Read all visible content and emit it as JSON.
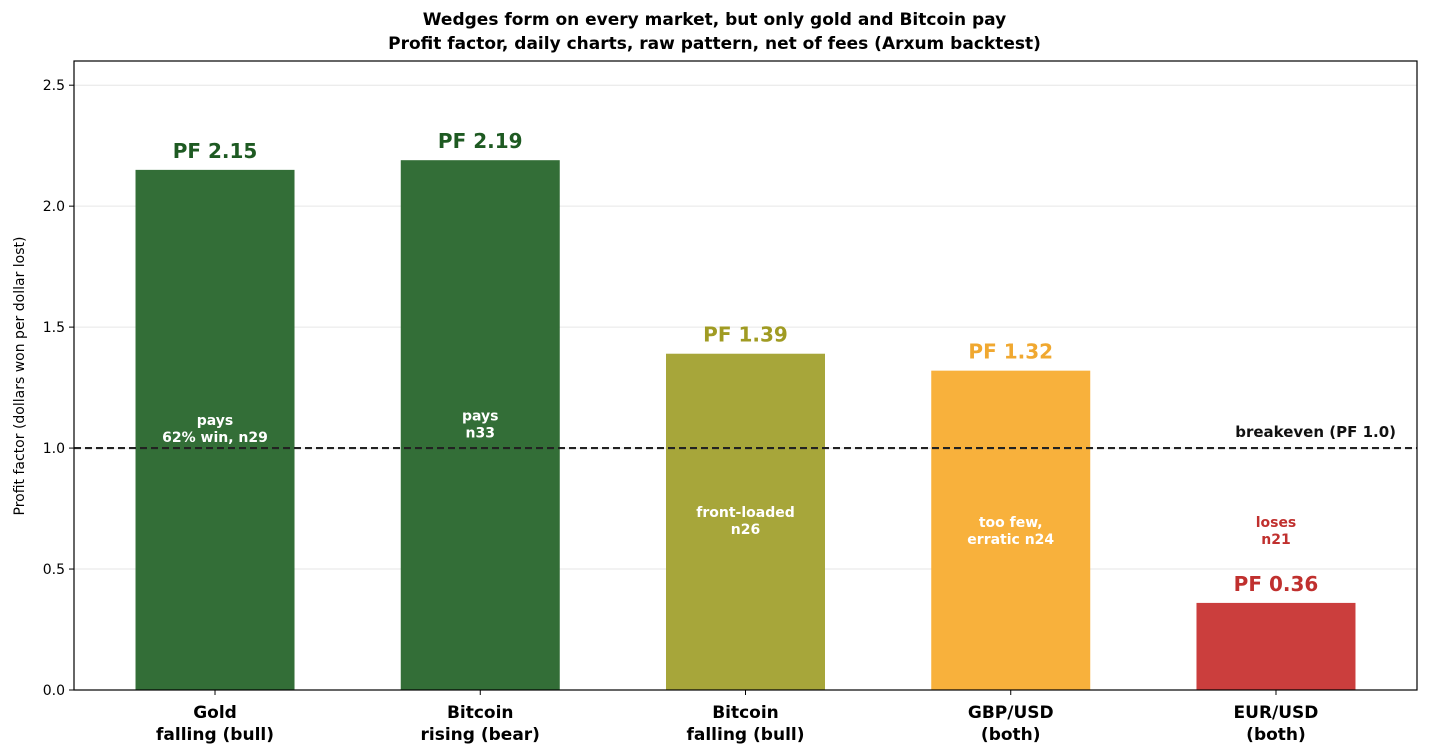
{
  "chart_data": {
    "type": "bar",
    "title": "Wedges form on every market, but only gold and Bitcoin pay",
    "subtitle": "Profit factor, daily charts, raw pattern, net of fees (Arxum backtest)",
    "xlabel": "",
    "ylabel": "Profit factor (dollars won per dollar lost)",
    "ylim": [
      0,
      2.6
    ],
    "yticks": [
      "0.0",
      "0.5",
      "1.0",
      "1.5",
      "2.0",
      "2.5"
    ],
    "ytick_values": [
      0,
      0.5,
      1.0,
      1.5,
      2.0,
      2.5
    ],
    "grid": true,
    "categories": [
      [
        "Gold",
        "falling (bull)"
      ],
      [
        "Bitcoin",
        "rising (bear)"
      ],
      [
        "Bitcoin",
        "falling (bull)"
      ],
      [
        "GBP/USD",
        "(both)"
      ],
      [
        "EUR/USD",
        "(both)"
      ]
    ],
    "values": [
      2.15,
      2.19,
      1.39,
      1.32,
      0.36
    ],
    "value_labels": [
      "PF 2.15",
      "PF 2.19",
      "PF 1.39",
      "PF 1.32",
      "PF 0.36"
    ],
    "bar_colors": [
      "#336e37",
      "#336e37",
      "#a7a63a",
      "#f8b13c",
      "#cb3e3d"
    ],
    "label_colors": [
      "#1e5a22",
      "#1e5a22",
      "#a09b23",
      "#f0a830",
      "#c0302e"
    ],
    "annotations": [
      {
        "lines": [
          "pays",
          "62% win, n29"
        ],
        "y": 1.08,
        "color": "#ffffff"
      },
      {
        "lines": [
          "pays",
          "n33"
        ],
        "y": 1.1,
        "color": "#ffffff"
      },
      {
        "lines": [
          "front-loaded",
          "n26"
        ],
        "y": 0.7,
        "color": "#ffffff"
      },
      {
        "lines": [
          "too few,",
          "erratic n24"
        ],
        "y": 0.66,
        "color": "#ffffff"
      },
      {
        "lines": [
          "loses",
          "n21"
        ],
        "y": 0.66,
        "color": "#c0302e"
      }
    ],
    "reference_line": {
      "y": 1.0,
      "label": "breakeven (PF 1.0)",
      "color": "#222222"
    }
  }
}
